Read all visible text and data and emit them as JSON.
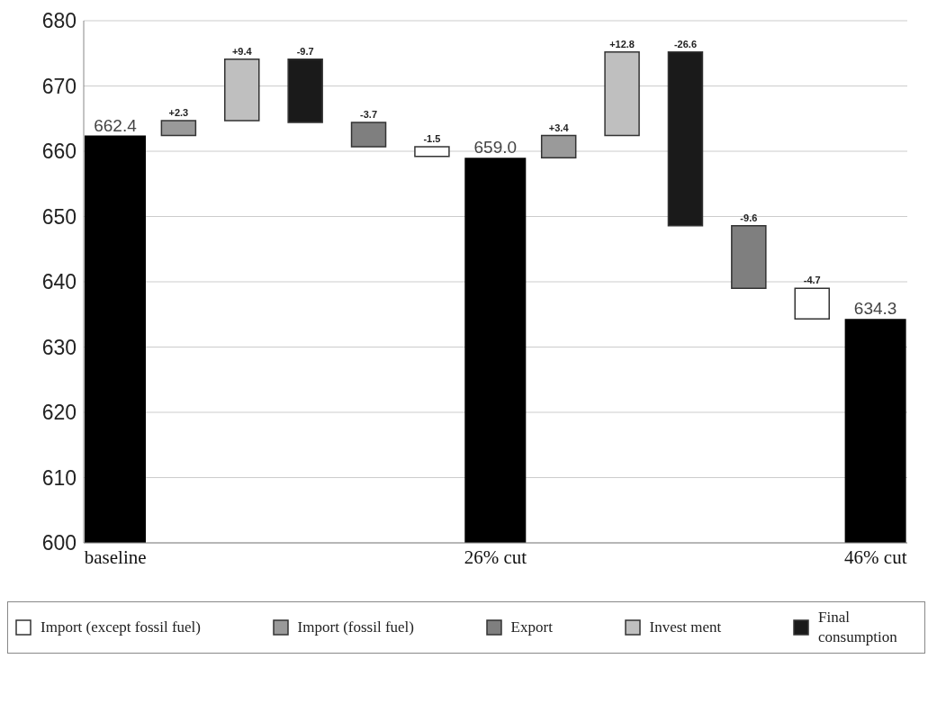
{
  "chart_data": {
    "type": "bar",
    "categories": [
      "baseline",
      null,
      null,
      null,
      null,
      null,
      "26% cut",
      null,
      null,
      null,
      null,
      null,
      "46% cut"
    ],
    "series": [
      {
        "color": "#000000",
        "values": [
          662.4,
          null,
          null,
          null,
          null,
          null,
          659.0,
          null,
          null,
          null,
          null,
          null,
          634.3
        ],
        "value_labels": [
          "662.4",
          null,
          null,
          null,
          null,
          null,
          "659.0",
          null,
          null,
          null,
          null,
          null,
          "634.3"
        ]
      },
      {
        "name": "Import (except fossil fuel)",
        "color": "#ffffff",
        "values": [
          null,
          null,
          null,
          null,
          null,
          -1.5,
          null,
          null,
          null,
          null,
          null,
          -4.7,
          null
        ],
        "base": [
          null,
          null,
          null,
          null,
          null,
          660.7,
          null,
          null,
          null,
          null,
          null,
          639.0,
          null
        ],
        "value_labels": [
          null,
          null,
          null,
          null,
          null,
          "-1.5",
          null,
          null,
          null,
          null,
          null,
          "-4.7",
          null
        ]
      },
      {
        "name": "Import (fossil fuel)",
        "color": "#9a9a9a",
        "values": [
          null,
          2.3,
          null,
          null,
          null,
          null,
          null,
          3.4,
          null,
          null,
          null,
          null,
          null
        ],
        "base": [
          null,
          662.4,
          null,
          null,
          null,
          null,
          null,
          659.0,
          null,
          null,
          null,
          null,
          null
        ],
        "value_labels": [
          null,
          "+2.3",
          null,
          null,
          null,
          null,
          null,
          "+3.4",
          null,
          null,
          null,
          null,
          null
        ]
      },
      {
        "name": "Export",
        "color": "#7f7f7f",
        "values": [
          null,
          null,
          null,
          null,
          -3.7,
          null,
          null,
          null,
          null,
          null,
          -9.6,
          null,
          null
        ],
        "base": [
          null,
          null,
          null,
          null,
          664.4,
          null,
          null,
          null,
          null,
          null,
          648.6,
          null,
          null
        ],
        "value_labels": [
          null,
          null,
          null,
          null,
          "-3.7",
          null,
          null,
          null,
          null,
          null,
          "-9.6",
          null,
          null
        ]
      },
      {
        "name": "Invest ment",
        "color": "#bfbfbf",
        "values": [
          null,
          null,
          9.4,
          null,
          null,
          null,
          null,
          null,
          12.8,
          null,
          null,
          null,
          null
        ],
        "base": [
          null,
          null,
          664.7,
          null,
          null,
          null,
          null,
          null,
          662.4,
          null,
          null,
          null,
          null
        ],
        "value_labels": [
          null,
          null,
          "+9.4",
          null,
          null,
          null,
          null,
          null,
          "+12.8",
          null,
          null,
          null,
          null
        ]
      },
      {
        "name": "Final consumption",
        "color": "#1a1a1a",
        "values": [
          null,
          null,
          null,
          -9.7,
          null,
          null,
          null,
          null,
          null,
          -26.6,
          null,
          null,
          null
        ],
        "base": [
          null,
          null,
          null,
          674.1,
          null,
          null,
          null,
          null,
          null,
          675.2,
          null,
          null,
          null
        ],
        "value_labels": [
          null,
          null,
          null,
          "-9.7",
          null,
          null,
          null,
          null,
          null,
          "-26.6",
          null,
          null,
          null
        ]
      }
    ],
    "ylim": [
      600,
      680
    ],
    "yticks": [
      600,
      610,
      620,
      630,
      640,
      650,
      660,
      670,
      680
    ],
    "grid": "y",
    "legend": "bottom"
  }
}
